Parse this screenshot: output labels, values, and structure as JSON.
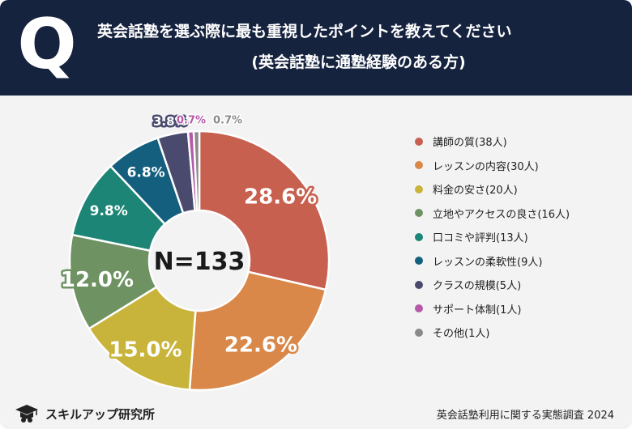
{
  "header": {
    "q_mark": "Q",
    "title_line1": "英会話塾を選ぶ際に最も重視したポイントを教えてください",
    "title_line2": "(英会話塾に通塾経験のある方)"
  },
  "chart_data": {
    "type": "donut",
    "center_label": "N=133",
    "categories": [
      "講師の質",
      "レッスンの内容",
      "料金の安さ",
      "立地やアクセスの良さ",
      "口コミや評判",
      "レッスンの柔軟性",
      "クラスの規模",
      "サポート体制",
      "その他"
    ],
    "counts": [
      38,
      30,
      20,
      16,
      13,
      9,
      5,
      1,
      1
    ],
    "values": [
      28.6,
      22.6,
      15.0,
      12.0,
      9.8,
      6.8,
      3.8,
      0.7,
      0.7
    ],
    "value_labels": [
      "28.6%",
      "22.6%",
      "15.0%",
      "12.0%",
      "9.8%",
      "6.8%",
      "3.8%",
      "0.7%",
      "0.7%"
    ],
    "legend_labels": [
      "講師の質(38人)",
      "レッスンの内容(30人)",
      "料金の安さ(20人)",
      "立地やアクセスの良さ(16人)",
      "口コミや評判(13人)",
      "レッスンの柔軟性(9人)",
      "クラスの規模(5人)",
      "サポート体制(1人)",
      "その他(1人)"
    ],
    "colors": [
      "#c8604f",
      "#d9884a",
      "#c8b43a",
      "#6e9262",
      "#1c8576",
      "#145f7d",
      "#4a4a6e",
      "#b45aa8",
      "#8a8a8a"
    ],
    "legend_position": "right"
  },
  "footer": {
    "logo_text": "スキルアップ研究所",
    "source": "英会話塾利用に関する実態調査 2024"
  }
}
